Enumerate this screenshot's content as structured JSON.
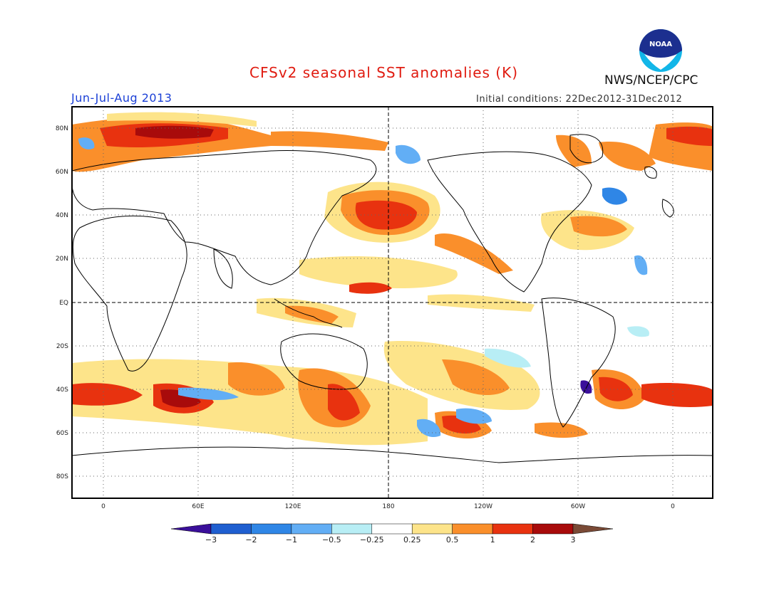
{
  "header": {
    "title": "CFSv2 seasonal SST anomalies (K)",
    "season": "Jun-Jul-Aug 2013",
    "initial_conditions": "Initial conditions: 22Dec2012-31Dec2012",
    "agency": "NWS/NCEP/CPC",
    "logo_text": "NOAA"
  },
  "axes": {
    "lat_labels": [
      "80N",
      "60N",
      "40N",
      "20N",
      "EQ",
      "20S",
      "40S",
      "60S",
      "80S"
    ],
    "lon_labels": [
      "0",
      "60E",
      "120E",
      "180",
      "120W",
      "60W",
      "0"
    ]
  },
  "colorbar": {
    "labels": [
      "-3",
      "-2",
      "-1",
      "-0.5",
      "-0.25",
      "0.25",
      "0.5",
      "1",
      "2",
      "3"
    ],
    "colors": [
      "#3a0f9a",
      "#1f5fd0",
      "#2f86e6",
      "#62aef5",
      "#b8eef5",
      "#ffffff",
      "#fde48a",
      "#fa8f2b",
      "#e8320f",
      "#a80b0b",
      "#7a4a36"
    ]
  },
  "colors": {
    "title": "#e01b10",
    "season": "#1a3fd6",
    "pos_weak": "#fde48a",
    "pos_mid": "#fa8f2b",
    "pos_strong": "#e8320f",
    "pos_max": "#a80b0b",
    "neg_weak": "#b8eef5",
    "neg_mid": "#62aef5",
    "neg_strong": "#2f86e6"
  }
}
